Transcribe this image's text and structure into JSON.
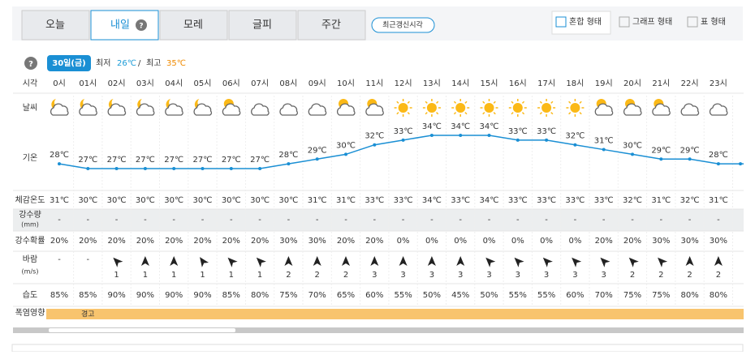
{
  "tabs": [
    "오늘",
    "내일",
    "모레",
    "글피",
    "주간"
  ],
  "help_icon": "?",
  "refresh_button": "최근갱신시각",
  "view_modes": [
    "혼합 형태",
    "그래프 형태",
    "표 형태"
  ],
  "date_badge": "30일(금)",
  "min_label": "최저",
  "min_temp": "26℃",
  "separator": "/",
  "max_label": "최고",
  "max_temp": "35℃",
  "row_labels": {
    "time": "시각",
    "weather": "날씨",
    "temp": "기온",
    "feels": "체감온도",
    "precip": "강수량",
    "precip_unit": "(mm)",
    "prob": "강수확률",
    "wind": "바람",
    "wind_unit": "(m/s)",
    "humidity": "습도",
    "heat": "폭염영향"
  },
  "hours": [
    "0시",
    "01시",
    "02시",
    "03시",
    "04시",
    "05시",
    "06시",
    "07시",
    "08시",
    "09시",
    "10시",
    "11시",
    "12시",
    "13시",
    "14시",
    "15시",
    "16시",
    "17시",
    "18시",
    "19시",
    "20시",
    "21시",
    "22시",
    "23시"
  ],
  "temperature": {
    "values": [
      28,
      27,
      27,
      27,
      27,
      27,
      27,
      27,
      28,
      29,
      30,
      32,
      33,
      34,
      34,
      34,
      33,
      33,
      32,
      31,
      30,
      29,
      29,
      28
    ],
    "value_labels": [
      "28℃",
      "27℃",
      "27℃",
      "27℃",
      "27℃",
      "27℃",
      "27℃",
      "27℃",
      "28℃",
      "29℃",
      "30℃",
      "32℃",
      "33℃",
      "34℃",
      "34℃",
      "34℃",
      "33℃",
      "33℃",
      "32℃",
      "31℃",
      "30℃",
      "29℃",
      "29℃",
      "28℃"
    ]
  },
  "feels_like": [
    "31℃",
    "30℃",
    "30℃",
    "30℃",
    "30℃",
    "30℃",
    "30℃",
    "30℃",
    "30℃",
    "31℃",
    "31℃",
    "33℃",
    "33℃",
    "34℃",
    "33℃",
    "34℃",
    "33℃",
    "33℃",
    "33℃",
    "33℃",
    "32℃",
    "31℃",
    "32℃",
    "31℃"
  ],
  "precipitation": [
    "-",
    "-",
    "-",
    "-",
    "-",
    "-",
    "-",
    "-",
    "-",
    "-",
    "-",
    "-",
    "-",
    "-",
    "-",
    "-",
    "-",
    "-",
    "-",
    "-",
    "-",
    "-",
    "-",
    "-"
  ],
  "precip_prob": [
    "20%",
    "20%",
    "20%",
    "20%",
    "20%",
    "20%",
    "20%",
    "20%",
    "30%",
    "30%",
    "20%",
    "20%",
    "0%",
    "0%",
    "0%",
    "0%",
    "0%",
    "0%",
    "0%",
    "20%",
    "20%",
    "30%",
    "30%",
    "30%"
  ],
  "wind_speed": [
    "-",
    "-",
    "1",
    "1",
    "1",
    "1",
    "1",
    "1",
    "2",
    "2",
    "2",
    "3",
    "3",
    "3",
    "3",
    "3",
    "3",
    "3",
    "3",
    "3",
    "2",
    "2",
    "2",
    "2"
  ],
  "humidity": [
    "85%",
    "85%",
    "90%",
    "90%",
    "90%",
    "90%",
    "85%",
    "80%",
    "75%",
    "70%",
    "65%",
    "60%",
    "55%",
    "50%",
    "45%",
    "50%",
    "55%",
    "55%",
    "60%",
    "70%",
    "75%",
    "75%",
    "80%",
    "80%"
  ],
  "heat_impact": [
    null,
    "경고",
    null,
    null,
    null,
    null,
    null,
    null,
    null,
    null,
    null,
    null,
    null,
    null,
    null,
    null,
    null,
    null,
    null,
    null,
    null,
    null,
    null,
    null
  ]
}
